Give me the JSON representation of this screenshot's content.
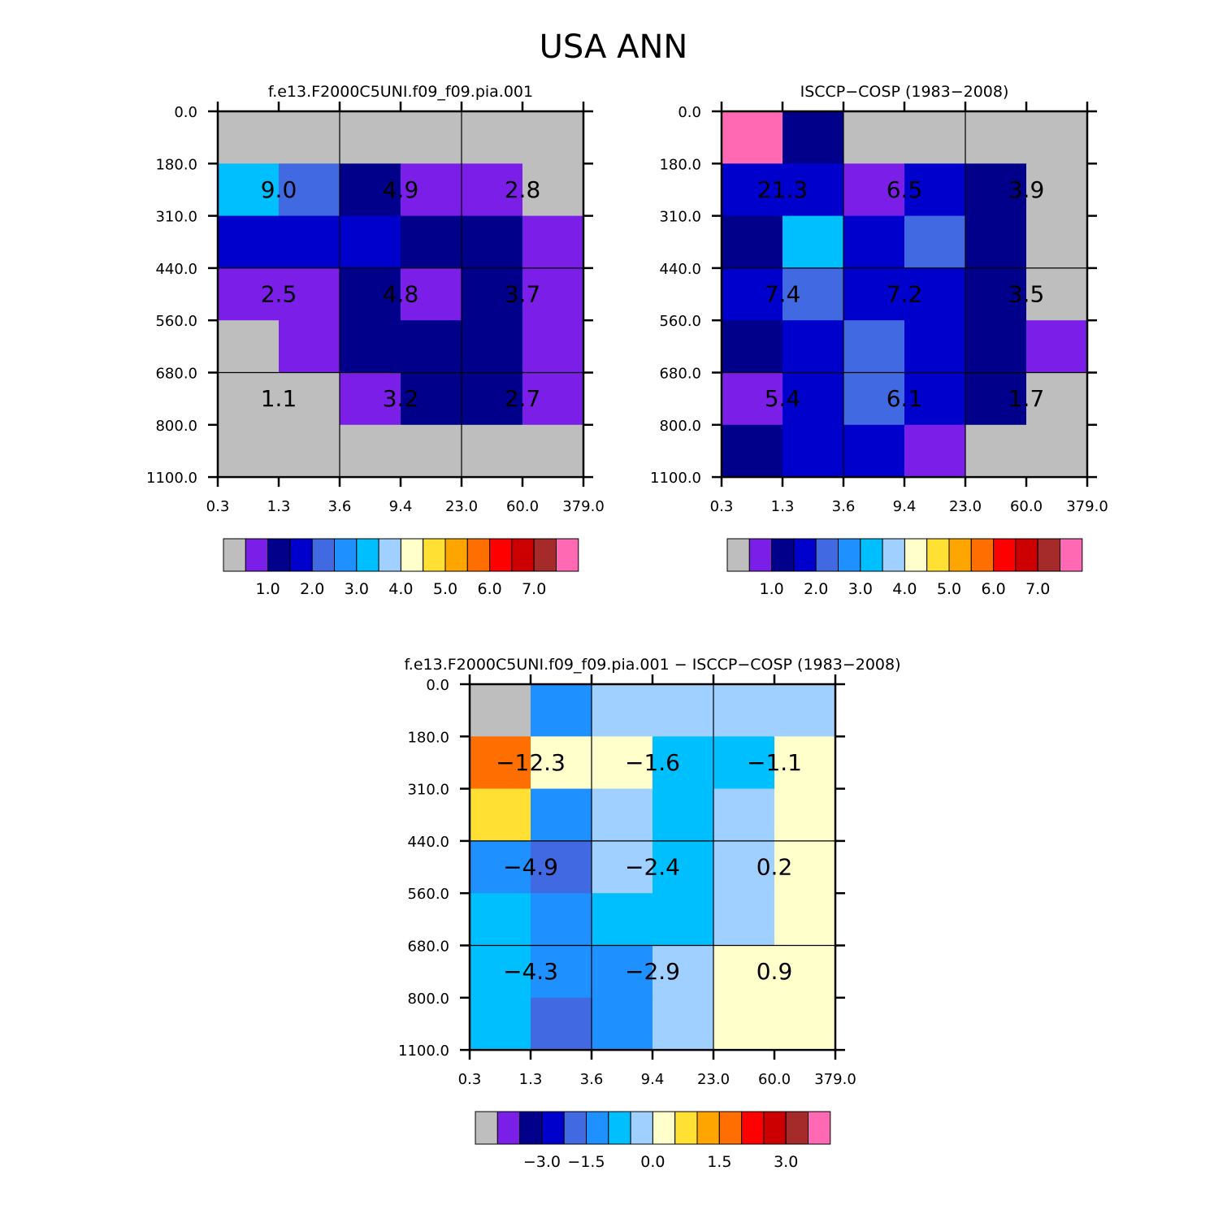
{
  "figure": {
    "title": "USA ANN"
  },
  "chart_data": [
    {
      "type": "heatmap",
      "title": "f.e13.F2000C5UNI.f09_f09.pia.001",
      "xlabel": "",
      "ylabel": "",
      "x_ticks": [
        "0.3",
        "1.3",
        "3.6",
        "9.4",
        "23.0",
        "60.0",
        "379.0"
      ],
      "y_ticks": [
        "0.0",
        "180.0",
        "310.0",
        "440.0",
        "560.0",
        "680.0",
        "800.0",
        "1100.0"
      ],
      "cell_colors": [
        [
          "#bebebe",
          "#bebebe",
          "#bebebe",
          "#bebebe",
          "#bebebe",
          "#bebebe"
        ],
        [
          "#00bfff",
          "#4169e1",
          "#00008b",
          "#7b1fe8",
          "#7b1fe8",
          "#bebebe"
        ],
        [
          "#0000cd",
          "#0000cd",
          "#0000cd",
          "#00008b",
          "#00008b",
          "#7b1fe8"
        ],
        [
          "#7b1fe8",
          "#7b1fe8",
          "#00008b",
          "#7b1fe8",
          "#00008b",
          "#7b1fe8"
        ],
        [
          "#bebebe",
          "#7b1fe8",
          "#00008b",
          "#00008b",
          "#00008b",
          "#7b1fe8"
        ],
        [
          "#bebebe",
          "#bebebe",
          "#7b1fe8",
          "#00008b",
          "#00008b",
          "#7b1fe8"
        ],
        [
          "#bebebe",
          "#bebebe",
          "#bebebe",
          "#bebebe",
          "#bebebe",
          "#bebebe"
        ]
      ],
      "block_values": [
        [
          "9.0",
          "4.9",
          "2.8"
        ],
        [
          "2.5",
          "4.8",
          "3.7"
        ],
        [
          "1.1",
          "3.2",
          "2.7"
        ]
      ],
      "colorbar": {
        "colors": [
          "#bebebe",
          "#7b1fe8",
          "#00008b",
          "#0000cd",
          "#4169e1",
          "#1e90ff",
          "#00bfff",
          "#a0d0ff",
          "#ffffcc",
          "#ffe033",
          "#ffa500",
          "#ff6e00",
          "#ff0000",
          "#cc0000",
          "#a52a2a",
          "#ff69b4"
        ],
        "labels": [
          "1.0",
          "2.0",
          "3.0",
          "4.0",
          "5.0",
          "6.0",
          "7.0"
        ],
        "label_boundaries": [
          2,
          4,
          6,
          8,
          10,
          12,
          14
        ]
      }
    },
    {
      "type": "heatmap",
      "title": "ISCCP−COSP (1983−2008)",
      "xlabel": "",
      "ylabel": "",
      "x_ticks": [
        "0.3",
        "1.3",
        "3.6",
        "9.4",
        "23.0",
        "60.0",
        "379.0"
      ],
      "y_ticks": [
        "0.0",
        "180.0",
        "310.0",
        "440.0",
        "560.0",
        "680.0",
        "800.0",
        "1100.0"
      ],
      "cell_colors": [
        [
          "#ff69b4",
          "#00008b",
          "#bebebe",
          "#bebebe",
          "#bebebe",
          "#bebebe"
        ],
        [
          "#0000cd",
          "#0000cd",
          "#7b1fe8",
          "#0000cd",
          "#00008b",
          "#bebebe"
        ],
        [
          "#00008b",
          "#00bfff",
          "#0000cd",
          "#4169e1",
          "#00008b",
          "#bebebe"
        ],
        [
          "#0000cd",
          "#4169e1",
          "#0000cd",
          "#0000cd",
          "#00008b",
          "#bebebe"
        ],
        [
          "#00008b",
          "#0000cd",
          "#4169e1",
          "#0000cd",
          "#00008b",
          "#7b1fe8"
        ],
        [
          "#7b1fe8",
          "#0000cd",
          "#4169e1",
          "#0000cd",
          "#00008b",
          "#bebebe"
        ],
        [
          "#00008b",
          "#0000cd",
          "#0000cd",
          "#7b1fe8",
          "#bebebe",
          "#bebebe"
        ]
      ],
      "block_values": [
        [
          "21.3",
          "6.5",
          "3.9"
        ],
        [
          "7.4",
          "7.2",
          "3.5"
        ],
        [
          "5.4",
          "6.1",
          "1.7"
        ]
      ],
      "colorbar": {
        "colors": [
          "#bebebe",
          "#7b1fe8",
          "#00008b",
          "#0000cd",
          "#4169e1",
          "#1e90ff",
          "#00bfff",
          "#a0d0ff",
          "#ffffcc",
          "#ffe033",
          "#ffa500",
          "#ff6e00",
          "#ff0000",
          "#cc0000",
          "#a52a2a",
          "#ff69b4"
        ],
        "labels": [
          "1.0",
          "2.0",
          "3.0",
          "4.0",
          "5.0",
          "6.0",
          "7.0"
        ],
        "label_boundaries": [
          2,
          4,
          6,
          8,
          10,
          12,
          14
        ]
      }
    },
    {
      "type": "heatmap",
      "title": "f.e13.F2000C5UNI.f09_f09.pia.001 − ISCCP−COSP (1983−2008)",
      "xlabel": "",
      "ylabel": "",
      "x_ticks": [
        "0.3",
        "1.3",
        "3.6",
        "9.4",
        "23.0",
        "60.0",
        "379.0"
      ],
      "y_ticks": [
        "0.0",
        "180.0",
        "310.0",
        "440.0",
        "560.0",
        "680.0",
        "800.0",
        "1100.0"
      ],
      "cell_colors": [
        [
          "#bebebe",
          "#1e90ff",
          "#a0d0ff",
          "#a0d0ff",
          "#a0d0ff",
          "#a0d0ff"
        ],
        [
          "#ff6e00",
          "#ffffcc",
          "#ffffcc",
          "#00bfff",
          "#00bfff",
          "#ffffcc"
        ],
        [
          "#ffe033",
          "#1e90ff",
          "#a0d0ff",
          "#00bfff",
          "#a0d0ff",
          "#ffffcc"
        ],
        [
          "#1e90ff",
          "#4169e1",
          "#a0d0ff",
          "#00bfff",
          "#a0d0ff",
          "#ffffcc"
        ],
        [
          "#00bfff",
          "#1e90ff",
          "#00bfff",
          "#00bfff",
          "#a0d0ff",
          "#ffffcc"
        ],
        [
          "#00bfff",
          "#1e90ff",
          "#1e90ff",
          "#a0d0ff",
          "#ffffcc",
          "#ffffcc"
        ],
        [
          "#00bfff",
          "#4169e1",
          "#1e90ff",
          "#a0d0ff",
          "#ffffcc",
          "#ffffcc"
        ]
      ],
      "block_values": [
        [
          "−12.3",
          "−1.6",
          "−1.1"
        ],
        [
          "−4.9",
          "−2.4",
          "0.2"
        ],
        [
          "−4.3",
          "−2.9",
          "0.9"
        ]
      ],
      "colorbar": {
        "colors": [
          "#bebebe",
          "#7b1fe8",
          "#00008b",
          "#0000cd",
          "#4169e1",
          "#1e90ff",
          "#00bfff",
          "#a0d0ff",
          "#ffffcc",
          "#ffe033",
          "#ffa500",
          "#ff6e00",
          "#ff0000",
          "#cc0000",
          "#a52a2a",
          "#ff69b4"
        ],
        "labels": [
          "−3.0",
          "−1.5",
          "0.0",
          "1.5",
          "3.0"
        ],
        "label_boundaries": [
          3,
          5,
          8,
          11,
          14
        ]
      }
    }
  ]
}
